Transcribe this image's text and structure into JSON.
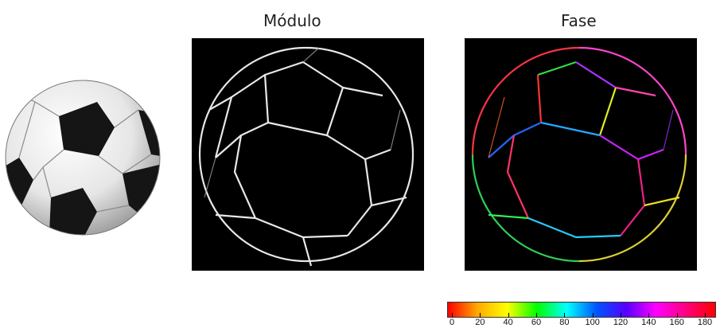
{
  "titles": {
    "modulo": "Módulo",
    "fase": "Fase"
  },
  "images": {
    "original": "soccer-ball-photo",
    "modulo": "edge-magnitude-image",
    "fase": "edge-phase-image"
  },
  "colorbar": {
    "ticks": [
      "0",
      "20",
      "40",
      "60",
      "80",
      "100",
      "120",
      "140",
      "160",
      "180"
    ]
  }
}
